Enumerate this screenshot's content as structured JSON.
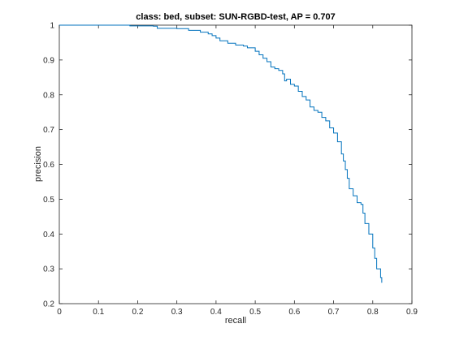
{
  "chart_data": {
    "type": "line",
    "title": "class: bed, subset: SUN-RGBD-test, AP = 0.707",
    "xlabel": "recall",
    "ylabel": "precision",
    "xlim": [
      0,
      0.9
    ],
    "ylim": [
      0.2,
      1
    ],
    "x_ticks": [
      "0",
      "0.1",
      "0.2",
      "0.3",
      "0.4",
      "0.5",
      "0.6",
      "0.7",
      "0.8",
      "0.9"
    ],
    "y_ticks": [
      "0.2",
      "0.3",
      "0.4",
      "0.5",
      "0.6",
      "0.7",
      "0.8",
      "0.9",
      "1"
    ],
    "grid": true,
    "legend": "none",
    "series": [
      {
        "color": "#0072bd",
        "points": [
          [
            0.0,
            1.0
          ],
          [
            0.18,
            0.998
          ],
          [
            0.24,
            0.997
          ],
          [
            0.25,
            0.991
          ],
          [
            0.3,
            0.99
          ],
          [
            0.33,
            0.985
          ],
          [
            0.36,
            0.98
          ],
          [
            0.38,
            0.975
          ],
          [
            0.39,
            0.97
          ],
          [
            0.4,
            0.963
          ],
          [
            0.41,
            0.955
          ],
          [
            0.43,
            0.948
          ],
          [
            0.45,
            0.943
          ],
          [
            0.47,
            0.94
          ],
          [
            0.48,
            0.935
          ],
          [
            0.5,
            0.925
          ],
          [
            0.51,
            0.915
          ],
          [
            0.52,
            0.905
          ],
          [
            0.53,
            0.895
          ],
          [
            0.54,
            0.88
          ],
          [
            0.55,
            0.875
          ],
          [
            0.56,
            0.87
          ],
          [
            0.57,
            0.86
          ],
          [
            0.575,
            0.84
          ],
          [
            0.58,
            0.845
          ],
          [
            0.59,
            0.83
          ],
          [
            0.6,
            0.825
          ],
          [
            0.61,
            0.81
          ],
          [
            0.62,
            0.795
          ],
          [
            0.63,
            0.785
          ],
          [
            0.64,
            0.765
          ],
          [
            0.65,
            0.755
          ],
          [
            0.66,
            0.75
          ],
          [
            0.67,
            0.735
          ],
          [
            0.68,
            0.725
          ],
          [
            0.69,
            0.705
          ],
          [
            0.7,
            0.69
          ],
          [
            0.71,
            0.665
          ],
          [
            0.72,
            0.63
          ],
          [
            0.725,
            0.61
          ],
          [
            0.73,
            0.585
          ],
          [
            0.735,
            0.56
          ],
          [
            0.74,
            0.53
          ],
          [
            0.75,
            0.51
          ],
          [
            0.76,
            0.49
          ],
          [
            0.77,
            0.485
          ],
          [
            0.775,
            0.46
          ],
          [
            0.78,
            0.43
          ],
          [
            0.79,
            0.4
          ],
          [
            0.8,
            0.36
          ],
          [
            0.805,
            0.33
          ],
          [
            0.81,
            0.3
          ],
          [
            0.82,
            0.275
          ],
          [
            0.823,
            0.26
          ]
        ]
      }
    ]
  }
}
